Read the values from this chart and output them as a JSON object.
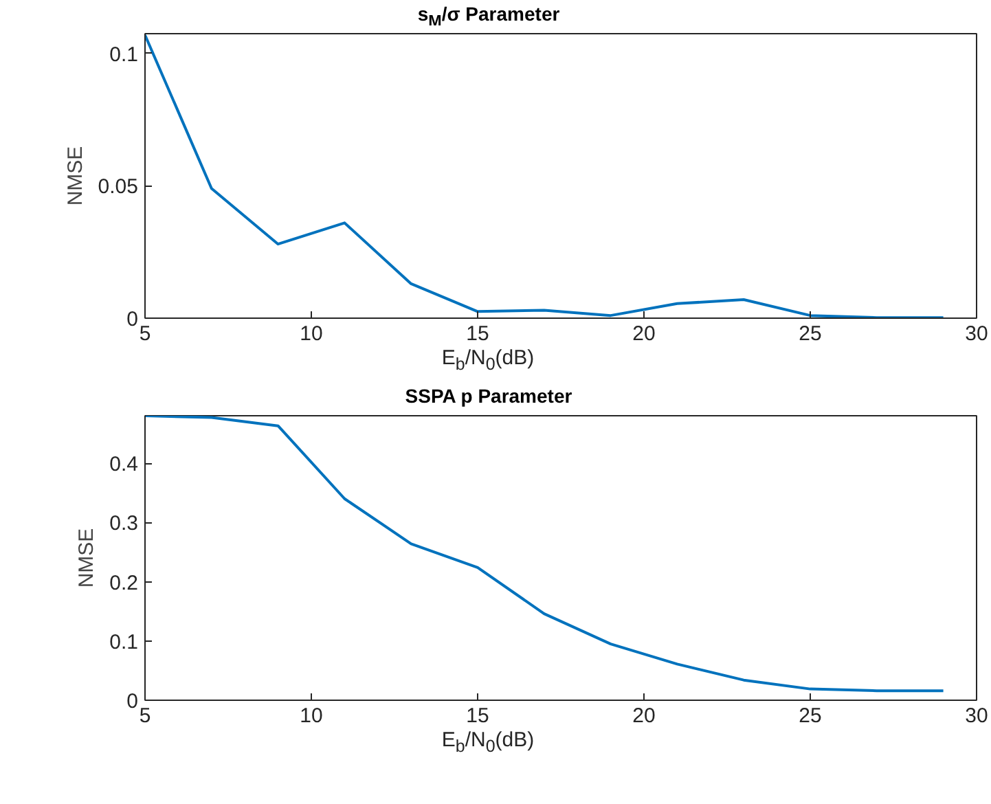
{
  "chart_data": [
    {
      "type": "line",
      "title": "s$_{M}$/σ Parameter",
      "xlabel": "E$_{b}$/N$_{0}$(dB)",
      "ylabel": "NMSE",
      "x": [
        5,
        7,
        9,
        11,
        13,
        15,
        17,
        19,
        21,
        23,
        25,
        27,
        29
      ],
      "series": [
        {
          "color": "#0072bd",
          "values": [
            0.107,
            0.049,
            0.028,
            0.036,
            0.013,
            0.0025,
            0.003,
            0.001,
            0.0055,
            0.007,
            0.001,
            0.0002,
            0.0002
          ]
        }
      ],
      "xlim": [
        5,
        30
      ],
      "xticks": [
        5,
        10,
        15,
        20,
        25,
        30
      ],
      "ylim": [
        0,
        0.1075
      ],
      "yticks": [
        0,
        0.05,
        0.1
      ],
      "marker": "none",
      "line_style": "solid"
    },
    {
      "type": "line",
      "title": "SSPA p Parameter",
      "xlabel": "E$_{b}$/N$_{0}$(dB)",
      "ylabel": "NMSE",
      "x": [
        5,
        7,
        9,
        11,
        13,
        15,
        17,
        19,
        21,
        23,
        25,
        27,
        29
      ],
      "series": [
        {
          "color": "#0072bd",
          "values": [
            0.48,
            0.477,
            0.463,
            0.34,
            0.264,
            0.224,
            0.146,
            0.095,
            0.061,
            0.034,
            0.019,
            0.016,
            0.016
          ]
        }
      ],
      "xlim": [
        5,
        30
      ],
      "xticks": [
        5,
        10,
        15,
        20,
        25,
        30
      ],
      "ylim": [
        0,
        0.48
      ],
      "yticks": [
        0,
        0.1,
        0.2,
        0.3,
        0.4
      ],
      "marker": "none",
      "line_style": "solid"
    }
  ]
}
